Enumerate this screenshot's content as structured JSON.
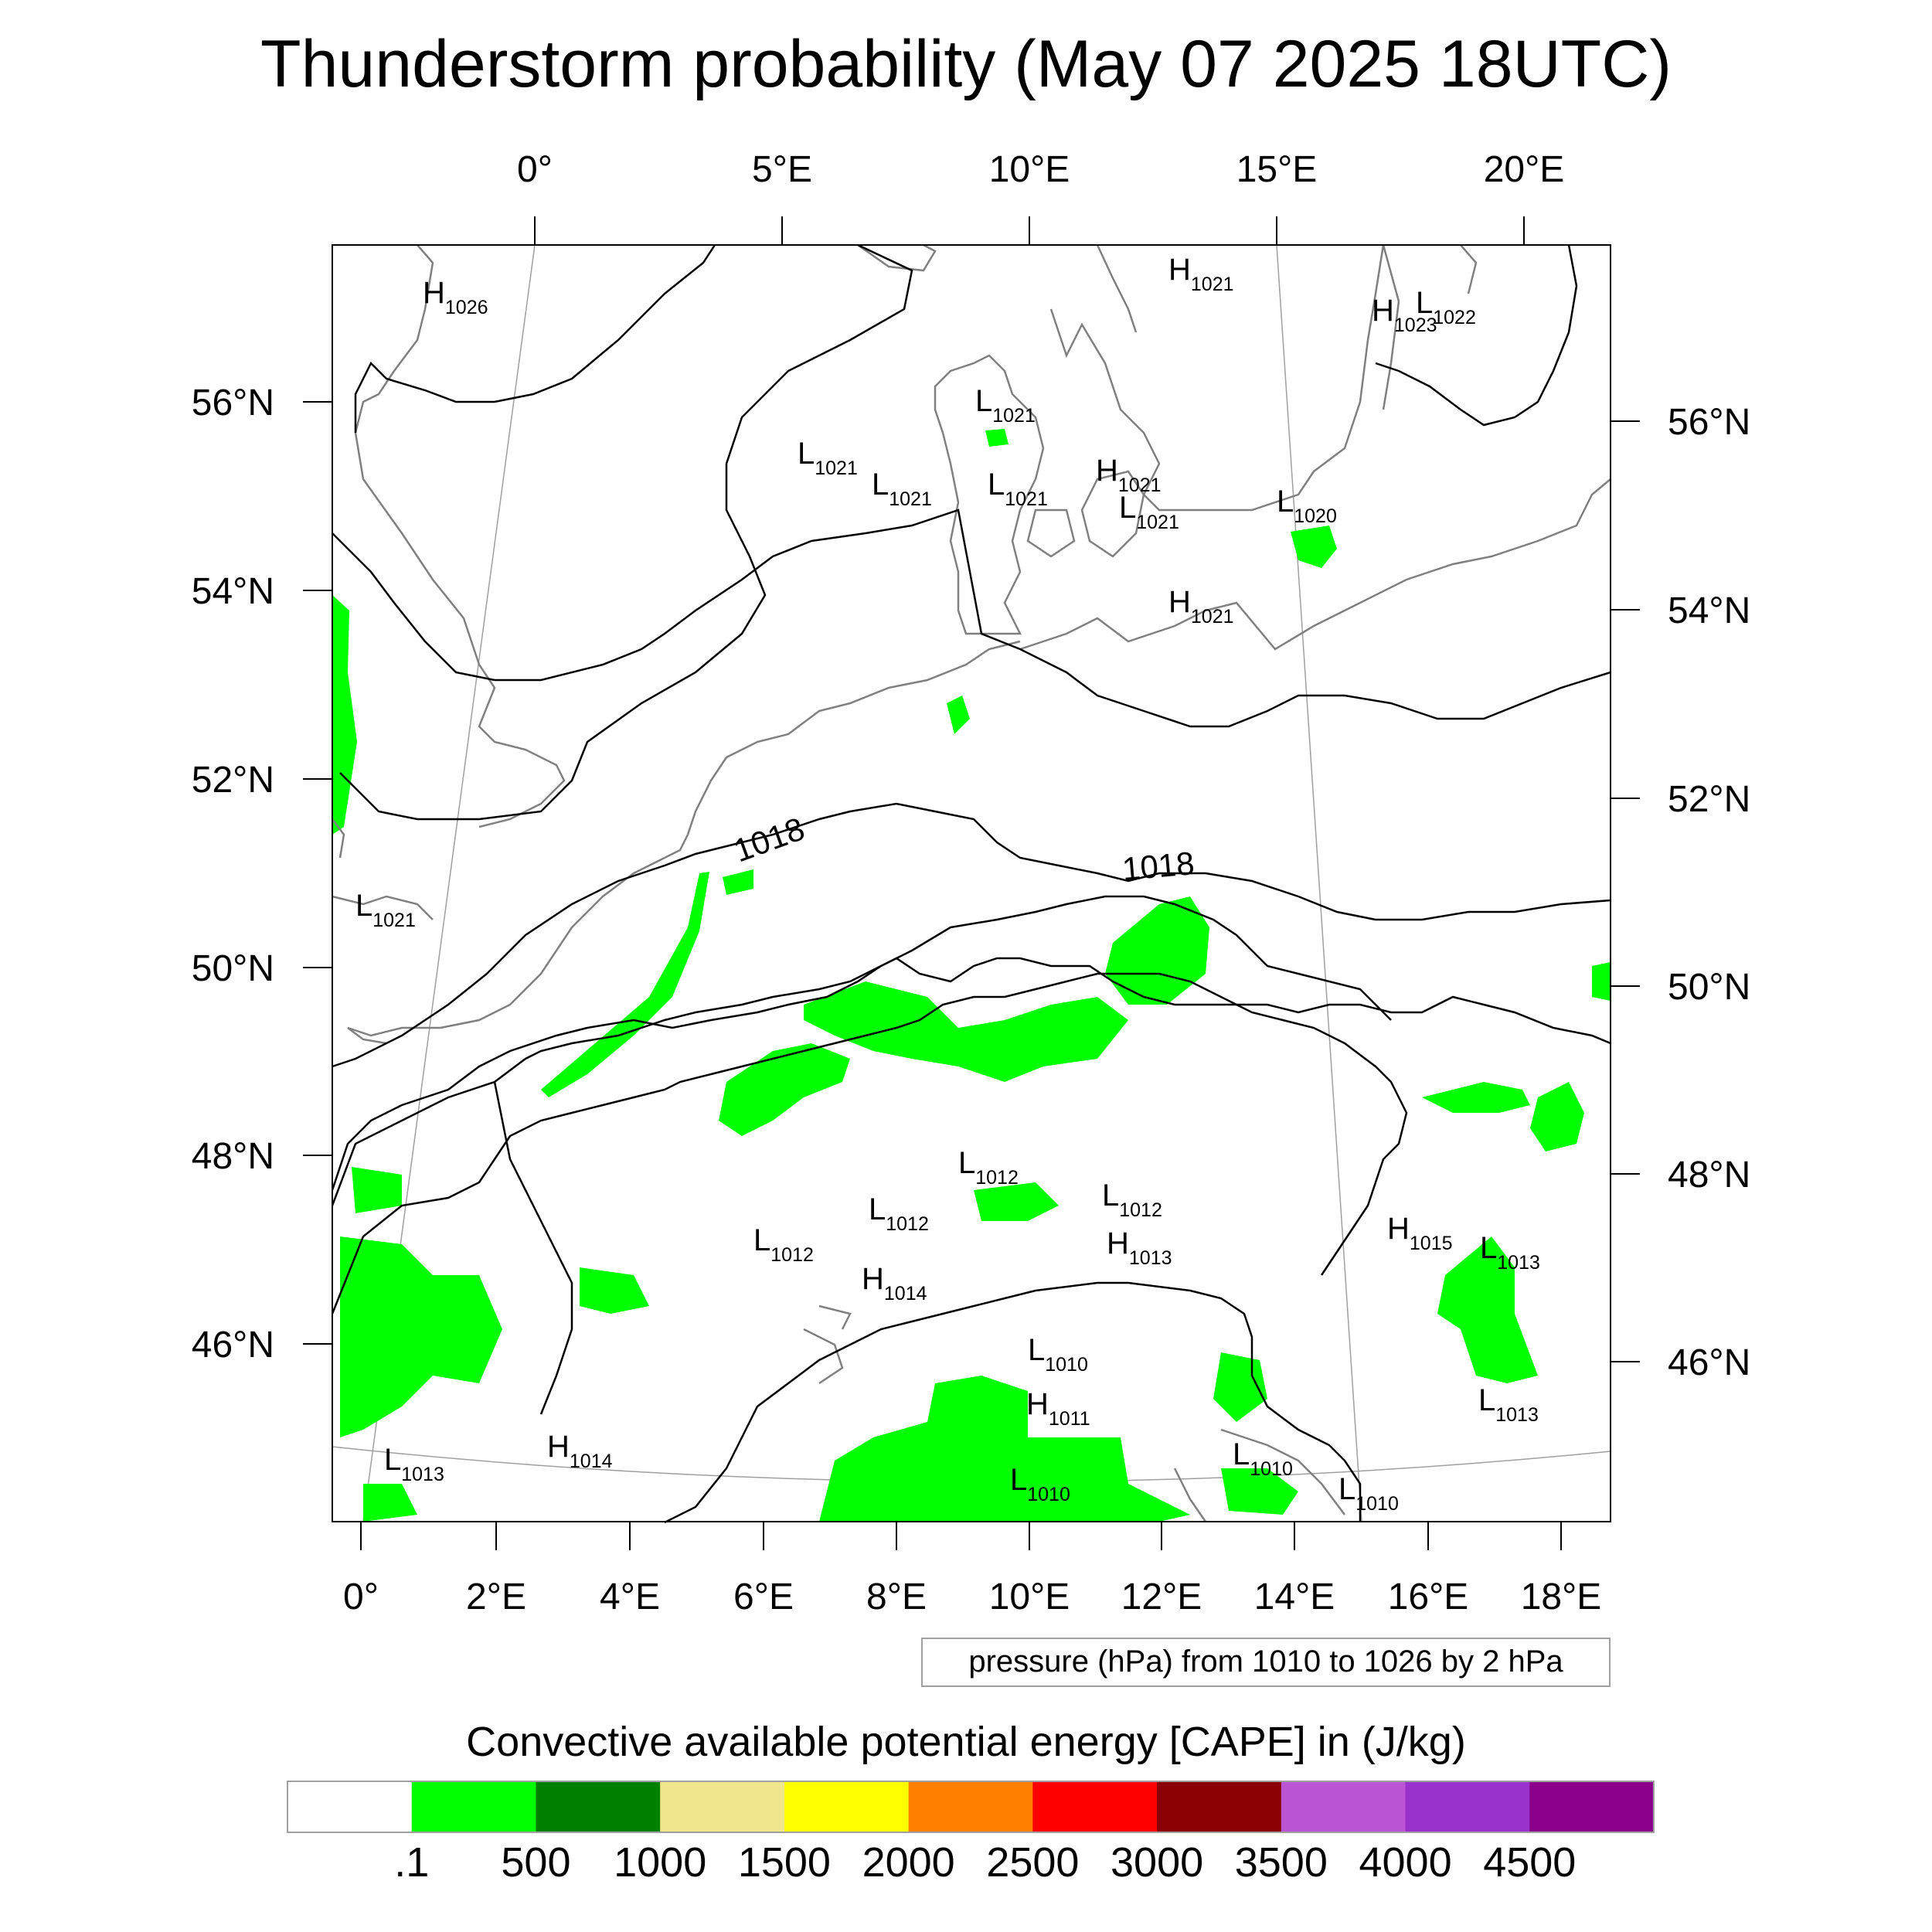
{
  "title": "Thunderstorm probability (May 07 2025 18UTC)",
  "top_lon_labels": [
    "0°",
    "5°E",
    "10°E",
    "15°E",
    "20°E"
  ],
  "bottom_lon_labels": [
    "0°",
    "2°E",
    "4°E",
    "6°E",
    "8°E",
    "10°E",
    "12°E",
    "14°E",
    "16°E",
    "18°E"
  ],
  "left_lat_labels": [
    "56°N",
    "54°N",
    "52°N",
    "50°N",
    "48°N",
    "46°N"
  ],
  "right_lat_labels": [
    "56°N",
    "54°N",
    "52°N",
    "50°N",
    "48°N",
    "46°N"
  ],
  "contour_labels": [
    "1018",
    "1018"
  ],
  "pressure_note": "pressure (hPa) from 1010 to 1026 by 2 hPa",
  "pressure_centers": [
    {
      "type": "H",
      "value": "1026"
    },
    {
      "type": "H",
      "value": "1021"
    },
    {
      "type": "H",
      "value": "1023"
    },
    {
      "type": "L",
      "value": "1022"
    },
    {
      "type": "L",
      "value": "1021"
    },
    {
      "type": "L",
      "value": "1021"
    },
    {
      "type": "L",
      "value": "1021"
    },
    {
      "type": "L",
      "value": "1021"
    },
    {
      "type": "H",
      "value": "1021"
    },
    {
      "type": "L",
      "value": "1021"
    },
    {
      "type": "L",
      "value": "1020"
    },
    {
      "type": "H",
      "value": "1021"
    },
    {
      "type": "L",
      "value": "1021"
    },
    {
      "type": "L",
      "value": "1012"
    },
    {
      "type": "L",
      "value": "1012"
    },
    {
      "type": "L",
      "value": "1012"
    },
    {
      "type": "L",
      "value": "1012"
    },
    {
      "type": "H",
      "value": "1013"
    },
    {
      "type": "H",
      "value": "1014"
    },
    {
      "type": "H",
      "value": "1015"
    },
    {
      "type": "L",
      "value": "1013"
    },
    {
      "type": "L",
      "value": "1010"
    },
    {
      "type": "H",
      "value": "1011"
    },
    {
      "type": "L",
      "value": "1013"
    },
    {
      "type": "H",
      "value": "1014"
    },
    {
      "type": "L",
      "value": "1010"
    },
    {
      "type": "L",
      "value": "1010"
    },
    {
      "type": "L",
      "value": "1010"
    },
    {
      "type": "L",
      "value": "1013"
    }
  ],
  "colorbar": {
    "title": "Convective available potential energy [CAPE] in (J/kg)",
    "colors": [
      "#ffffff",
      "#00ff00",
      "#008000",
      "#f0e68c",
      "#ffff00",
      "#ff8000",
      "#ff0000",
      "#8b0000",
      "#ba55d3",
      "#9932cc",
      "#8b008b"
    ],
    "labels": [
      ".1",
      "500",
      "1000",
      "1500",
      "2000",
      "2500",
      "3000",
      "3500",
      "4000",
      "4500"
    ]
  },
  "colors": {
    "cape_green": "#00ff00",
    "coast": "#808080",
    "isobar": "#000000"
  }
}
